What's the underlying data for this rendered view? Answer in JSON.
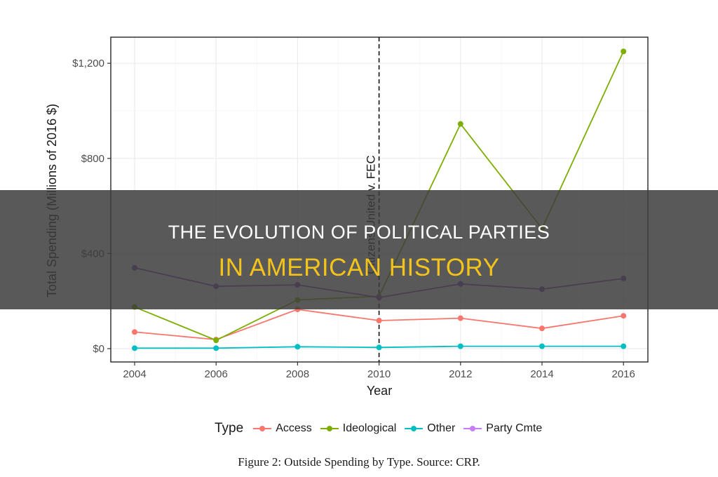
{
  "overlay": {
    "title_line1": "THE EVOLUTION OF POLITICAL PARTIES",
    "title_line2": "IN AMERICAN HISTORY",
    "title_line1_color": "#ffffff",
    "title_line2_color": "#f2c31b"
  },
  "figure": {
    "caption": "Figure 2: Outside Spending by Type. Source: CRP."
  },
  "chart_data": {
    "type": "line",
    "title": "",
    "xlabel": "Year",
    "ylabel": "Total Spending (Millions of 2016 $)",
    "x": [
      2004,
      2006,
      2008,
      2010,
      2012,
      2014,
      2016
    ],
    "x_ticks": [
      "2004",
      "2006",
      "2008",
      "2010",
      "2012",
      "2014",
      "2016"
    ],
    "y_ticks": [
      "$0",
      "$400",
      "$800",
      "$1,200"
    ],
    "y_tick_values": [
      0,
      400,
      800,
      1200
    ],
    "ylim": [
      -50,
      1310
    ],
    "grid": true,
    "legend_title": "Type",
    "legend_position": "bottom",
    "series": [
      {
        "name": "Access",
        "color": "#f8766d",
        "values": [
          70,
          38,
          165,
          118,
          128,
          85,
          138
        ]
      },
      {
        "name": "Ideological",
        "color": "#7cae00",
        "values": [
          175,
          35,
          205,
          220,
          945,
          505,
          1250
        ]
      },
      {
        "name": "Other",
        "color": "#00bfc4",
        "values": [
          2,
          2,
          8,
          5,
          10,
          10,
          10
        ]
      },
      {
        "name": "Party Cmte",
        "color": "#c77cff",
        "values": [
          340,
          262,
          268,
          215,
          272,
          250,
          295
        ]
      }
    ],
    "annotations": [
      {
        "type": "vline",
        "x": 2010,
        "style": "dashed",
        "label": "Citizens United v. FEC"
      }
    ]
  }
}
